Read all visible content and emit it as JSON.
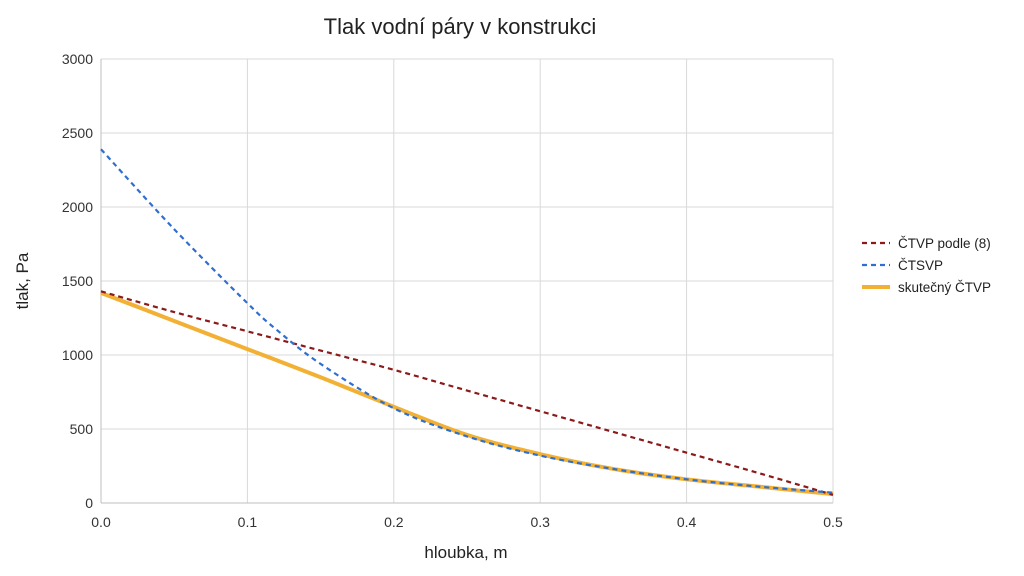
{
  "chart_data": {
    "type": "line",
    "title": "Tlak vodní páry v konstrukci",
    "xlabel": "hloubka, m",
    "ylabel": "tlak, Pa",
    "xlim": [
      0,
      0.5
    ],
    "ylim": [
      0,
      3000
    ],
    "xticks": [
      "0.0",
      "0.1",
      "0.2",
      "0.3",
      "0.4",
      "0.5"
    ],
    "yticks": [
      "0",
      "500",
      "1000",
      "1500",
      "2000",
      "2500",
      "3000"
    ],
    "grid": true,
    "legend_position": "right",
    "series": [
      {
        "name": "ČTVP podle (8)",
        "color": "#8b1a1a",
        "style": "dashed",
        "x": [
          0.0,
          0.05,
          0.1,
          0.15,
          0.2,
          0.25,
          0.3,
          0.35,
          0.4,
          0.45,
          0.5
        ],
        "y": [
          1430,
          1290,
          1160,
          1030,
          900,
          760,
          620,
          480,
          340,
          200,
          55
        ]
      },
      {
        "name": "ČTSVP",
        "color": "#2f6fcf",
        "style": "dashed",
        "x": [
          0.0,
          0.05,
          0.1,
          0.12,
          0.15,
          0.2,
          0.25,
          0.3,
          0.35,
          0.4,
          0.45,
          0.5
        ],
        "y": [
          2390,
          1850,
          1350,
          1170,
          940,
          640,
          450,
          320,
          230,
          160,
          110,
          70
        ]
      },
      {
        "name": "skutečný ČTVP",
        "color": "#f2b134",
        "style": "solid",
        "x": [
          0.0,
          0.05,
          0.1,
          0.15,
          0.2,
          0.25,
          0.3,
          0.35,
          0.4,
          0.45,
          0.5
        ],
        "y": [
          1420,
          1230,
          1040,
          850,
          650,
          460,
          330,
          230,
          160,
          110,
          60
        ]
      }
    ]
  }
}
